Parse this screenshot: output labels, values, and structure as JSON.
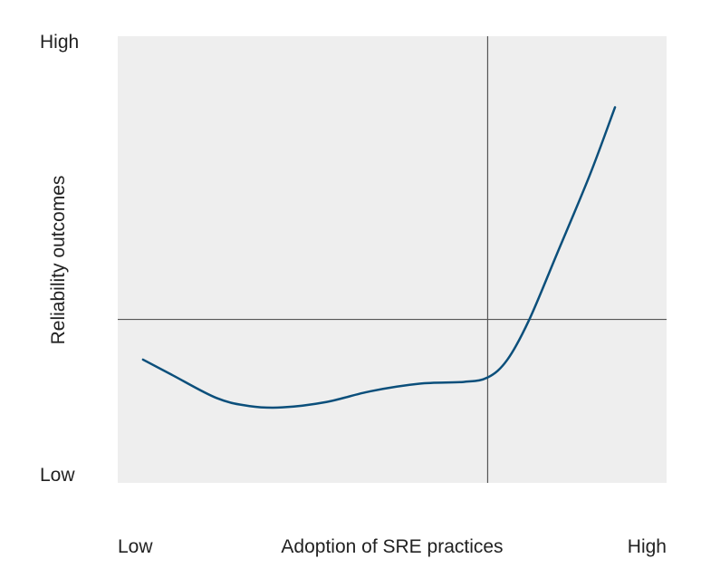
{
  "chart_data": {
    "type": "line",
    "title": "",
    "xlabel": "Adoption of SRE practices",
    "ylabel": "Reliability outcomes",
    "x_tick_labels": [
      "Low",
      "High"
    ],
    "y_tick_labels": [
      "High",
      "Low"
    ],
    "xlim": [
      0,
      100
    ],
    "ylim": [
      0,
      100
    ],
    "grid": false,
    "reference_lines": {
      "x": 67.4,
      "y": 36.6
    },
    "series": [
      {
        "points": [
          [
            4.6,
            27.6
          ],
          [
            10,
            24.1
          ],
          [
            18,
            19.0
          ],
          [
            24,
            17.2
          ],
          [
            30,
            16.9
          ],
          [
            38,
            18.1
          ],
          [
            46,
            20.5
          ],
          [
            55,
            22.2
          ],
          [
            63,
            22.6
          ],
          [
            67.4,
            23.6
          ],
          [
            71,
            27.6
          ],
          [
            75,
            36.6
          ],
          [
            80,
            51.2
          ],
          [
            86,
            68.9
          ],
          [
            90.6,
            84.1
          ]
        ]
      }
    ],
    "colors": {
      "plot_background": "#eeeeee",
      "line": "#0b4f7b",
      "reference_line": "#555555"
    }
  }
}
